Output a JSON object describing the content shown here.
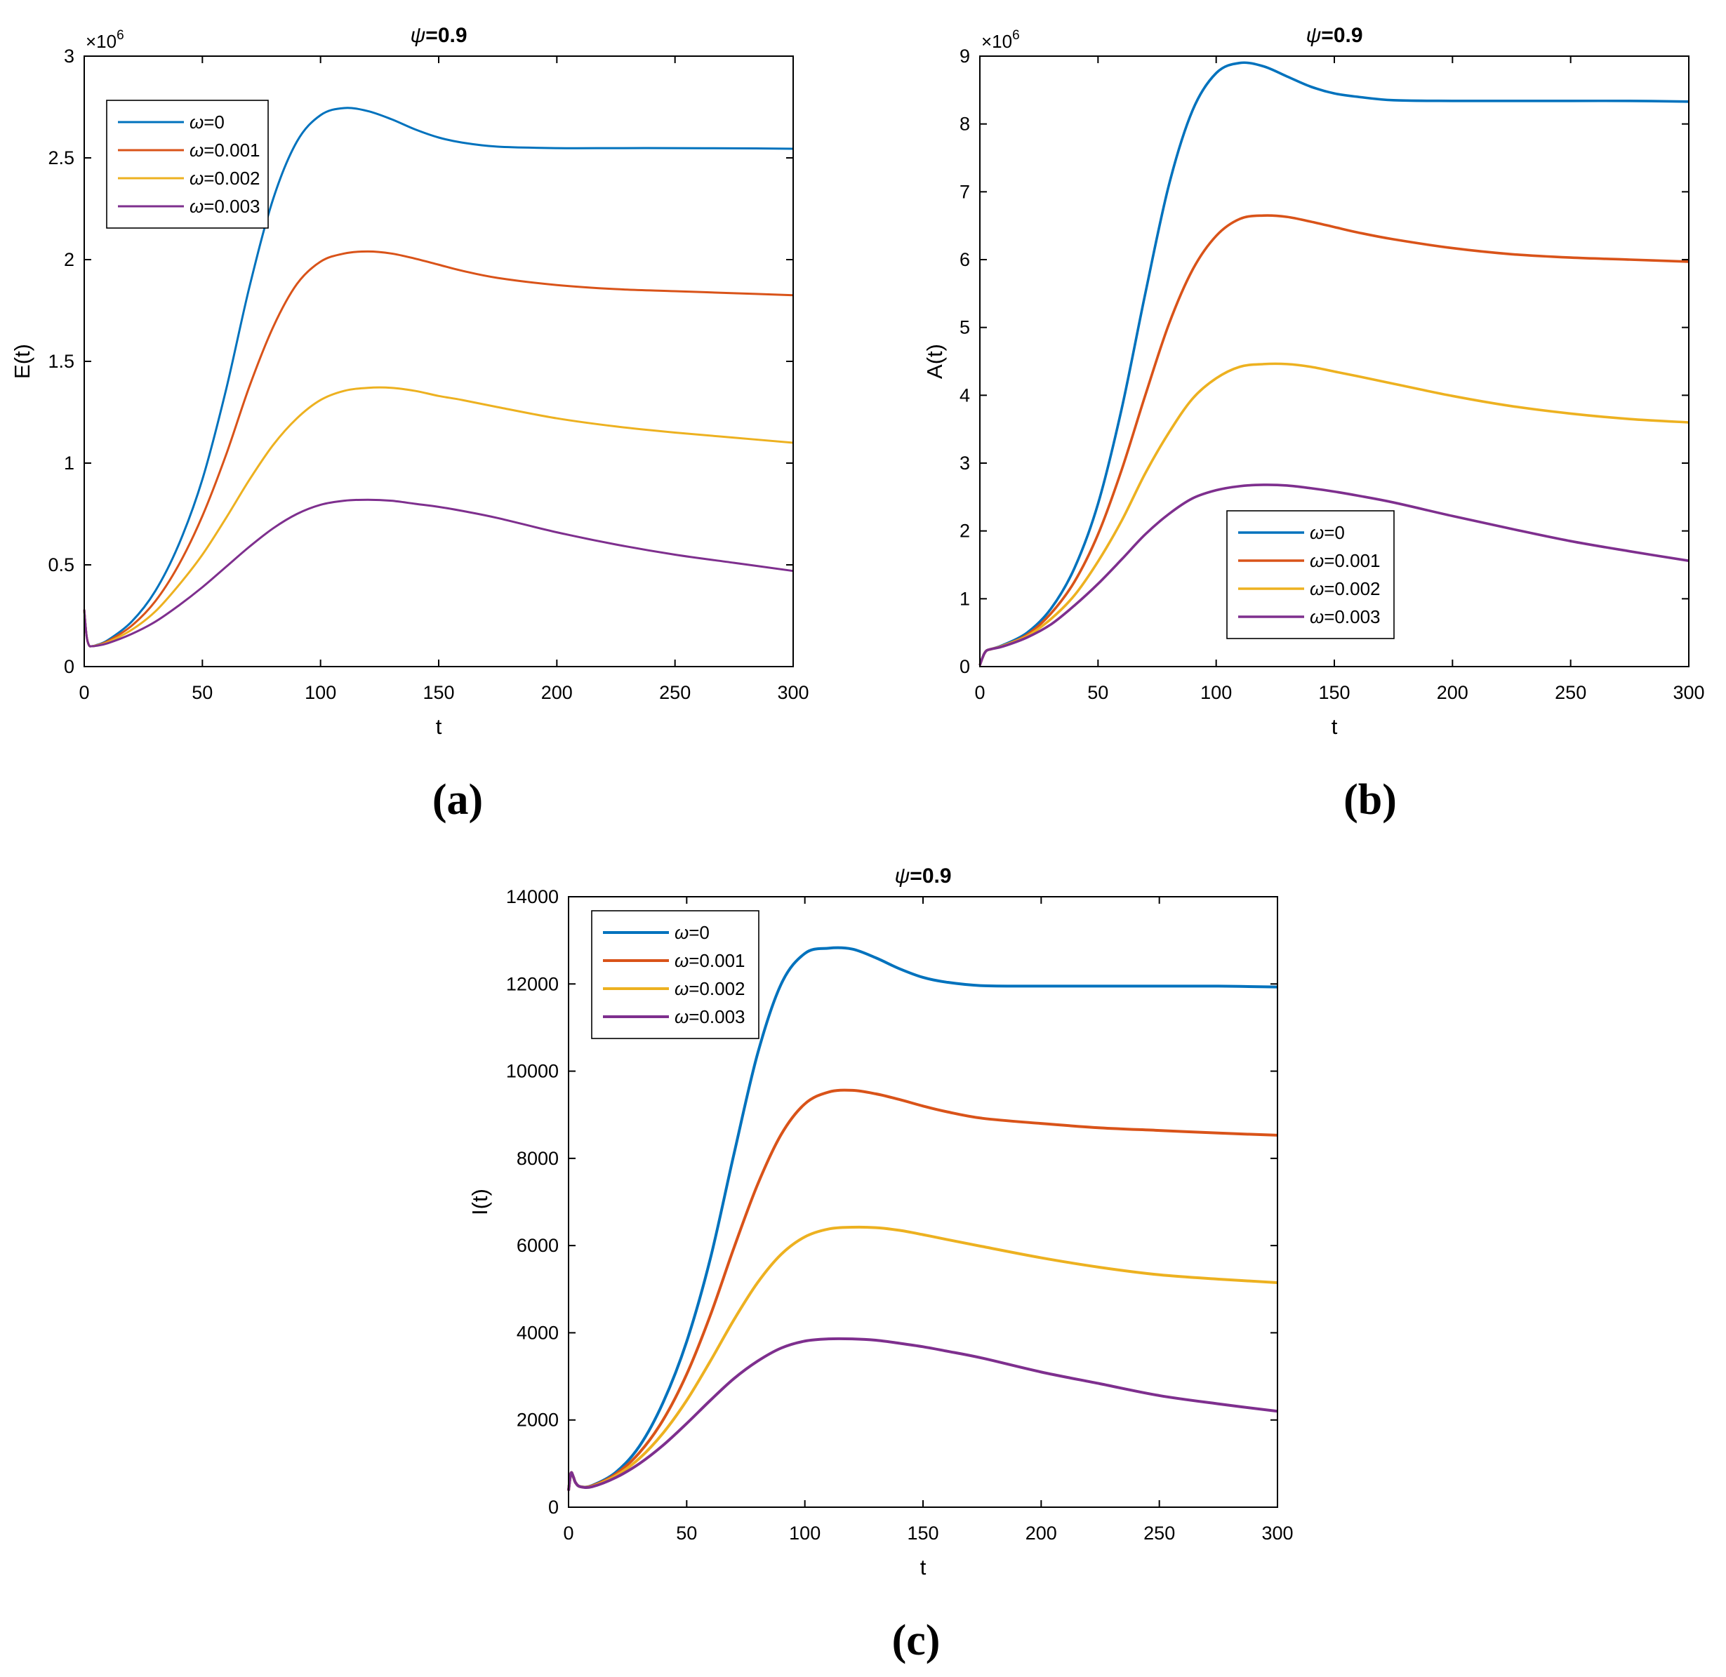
{
  "colors": {
    "series": [
      "#0072BD",
      "#D95319",
      "#EDB120",
      "#7E2F8E"
    ],
    "axis": "#000000",
    "background": "#ffffff"
  },
  "chart_data": [
    {
      "id": "a",
      "type": "line",
      "caption": "(a)",
      "title": {
        "symbol": "ψ",
        "value": "=0.9"
      },
      "xlabel": "t",
      "ylabel": "E(t)",
      "xlim": [
        0,
        300
      ],
      "ylim": [
        0,
        3
      ],
      "xticks": [
        0,
        50,
        100,
        150,
        200,
        250,
        300
      ],
      "yticks": [
        0,
        0.5,
        1,
        1.5,
        2,
        2.5,
        3
      ],
      "ytick_labels": [
        "0",
        "0.5",
        "1",
        "1.5",
        "2",
        "2.5",
        "3"
      ],
      "multiplier": {
        "base": "×10",
        "exp": "6"
      },
      "grid": false,
      "legend_position": "top-left",
      "x": [
        0,
        1,
        2,
        3,
        5,
        10,
        20,
        30,
        40,
        50,
        60,
        70,
        80,
        90,
        100,
        110,
        120,
        130,
        140,
        150,
        160,
        175,
        200,
        225,
        250,
        275,
        300
      ],
      "series": [
        {
          "name": "ω=0",
          "symbol": "ω",
          "value": "=0",
          "values": [
            0.28,
            0.15,
            0.105,
            0.1,
            0.105,
            0.13,
            0.22,
            0.37,
            0.6,
            0.92,
            1.36,
            1.87,
            2.3,
            2.58,
            2.71,
            2.745,
            2.73,
            2.69,
            2.64,
            2.6,
            2.575,
            2.555,
            2.548,
            2.548,
            2.548,
            2.547,
            2.545
          ]
        },
        {
          "name": "ω=0.001",
          "symbol": "ω",
          "value": "=0.001",
          "values": [
            0.28,
            0.15,
            0.105,
            0.1,
            0.104,
            0.125,
            0.2,
            0.32,
            0.5,
            0.74,
            1.04,
            1.38,
            1.67,
            1.88,
            1.99,
            2.03,
            2.04,
            2.03,
            2.005,
            1.975,
            1.945,
            1.91,
            1.875,
            1.855,
            1.845,
            1.835,
            1.825
          ]
        },
        {
          "name": "ω=0.002",
          "symbol": "ω",
          "value": "=0.002",
          "values": [
            0.28,
            0.15,
            0.105,
            0.1,
            0.103,
            0.12,
            0.18,
            0.27,
            0.4,
            0.55,
            0.73,
            0.92,
            1.09,
            1.22,
            1.31,
            1.355,
            1.37,
            1.37,
            1.355,
            1.33,
            1.31,
            1.275,
            1.22,
            1.18,
            1.15,
            1.125,
            1.1
          ]
        },
        {
          "name": "ω=0.003",
          "symbol": "ω",
          "value": "=0.003",
          "values": [
            0.28,
            0.15,
            0.105,
            0.1,
            0.102,
            0.115,
            0.16,
            0.22,
            0.3,
            0.39,
            0.49,
            0.59,
            0.68,
            0.75,
            0.795,
            0.815,
            0.82,
            0.815,
            0.8,
            0.785,
            0.765,
            0.73,
            0.66,
            0.6,
            0.55,
            0.51,
            0.47
          ]
        }
      ]
    },
    {
      "id": "b",
      "type": "line",
      "caption": "(b)",
      "title": {
        "symbol": "ψ",
        "value": "=0.9"
      },
      "xlabel": "t",
      "ylabel": "A(t)",
      "xlim": [
        0,
        300
      ],
      "ylim": [
        0,
        9
      ],
      "xticks": [
        0,
        50,
        100,
        150,
        200,
        250,
        300
      ],
      "yticks": [
        0,
        1,
        2,
        3,
        4,
        5,
        6,
        7,
        8,
        9
      ],
      "ytick_labels": [
        "0",
        "1",
        "2",
        "3",
        "4",
        "5",
        "6",
        "7",
        "8",
        "9"
      ],
      "multiplier": {
        "base": "×10",
        "exp": "6"
      },
      "grid": false,
      "legend_position": "bottom-right",
      "x": [
        0,
        1,
        2,
        3,
        5,
        10,
        20,
        30,
        40,
        50,
        60,
        70,
        80,
        90,
        100,
        110,
        120,
        130,
        140,
        150,
        160,
        175,
        200,
        225,
        250,
        275,
        300
      ],
      "series": [
        {
          "name": "ω=0",
          "symbol": "ω",
          "value": "=0",
          "values": [
            0.02,
            0.12,
            0.2,
            0.24,
            0.26,
            0.32,
            0.5,
            0.85,
            1.45,
            2.4,
            3.8,
            5.5,
            7.1,
            8.2,
            8.75,
            8.9,
            8.85,
            8.7,
            8.55,
            8.45,
            8.4,
            8.35,
            8.34,
            8.34,
            8.34,
            8.34,
            8.33
          ]
        },
        {
          "name": "ω=0.001",
          "symbol": "ω",
          "value": "=0.001",
          "values": [
            0.02,
            0.12,
            0.2,
            0.24,
            0.26,
            0.31,
            0.47,
            0.78,
            1.25,
            1.95,
            2.9,
            4.0,
            5.05,
            5.85,
            6.35,
            6.6,
            6.65,
            6.63,
            6.56,
            6.48,
            6.4,
            6.3,
            6.17,
            6.08,
            6.03,
            6.0,
            5.97
          ]
        },
        {
          "name": "ω=0.002",
          "symbol": "ω",
          "value": "=0.002",
          "values": [
            0.02,
            0.12,
            0.2,
            0.24,
            0.26,
            0.31,
            0.45,
            0.7,
            1.05,
            1.55,
            2.15,
            2.85,
            3.45,
            3.95,
            4.25,
            4.42,
            4.46,
            4.46,
            4.42,
            4.35,
            4.28,
            4.17,
            3.99,
            3.84,
            3.73,
            3.65,
            3.6
          ]
        },
        {
          "name": "ω=0.003",
          "symbol": "ω",
          "value": "=0.003",
          "values": [
            0.02,
            0.12,
            0.2,
            0.24,
            0.26,
            0.3,
            0.43,
            0.62,
            0.9,
            1.22,
            1.58,
            1.95,
            2.25,
            2.48,
            2.6,
            2.66,
            2.68,
            2.67,
            2.63,
            2.58,
            2.52,
            2.42,
            2.22,
            2.03,
            1.85,
            1.7,
            1.56
          ]
        }
      ]
    },
    {
      "id": "c",
      "type": "line",
      "caption": "(c)",
      "title": {
        "symbol": "ψ",
        "value": "=0.9"
      },
      "xlabel": "t",
      "ylabel": "I(t)",
      "xlim": [
        0,
        300
      ],
      "ylim": [
        0,
        14000
      ],
      "xticks": [
        0,
        50,
        100,
        150,
        200,
        250,
        300
      ],
      "yticks": [
        0,
        2000,
        4000,
        6000,
        8000,
        10000,
        12000,
        14000
      ],
      "ytick_labels": [
        "0",
        "2000",
        "4000",
        "6000",
        "8000",
        "10000",
        "12000",
        "14000"
      ],
      "grid": false,
      "legend_position": "top-left",
      "x": [
        0,
        1,
        2,
        3,
        5,
        10,
        20,
        30,
        40,
        50,
        60,
        70,
        80,
        90,
        100,
        110,
        120,
        130,
        140,
        150,
        160,
        175,
        200,
        225,
        250,
        275,
        300
      ],
      "series": [
        {
          "name": "ω=0",
          "symbol": "ω",
          "value": "=0",
          "values": [
            380,
            780,
            700,
            560,
            470,
            500,
            800,
            1400,
            2400,
            3800,
            5700,
            8100,
            10400,
            12000,
            12700,
            12820,
            12800,
            12600,
            12350,
            12150,
            12040,
            11960,
            11950,
            11950,
            11950,
            11950,
            11930
          ]
        },
        {
          "name": "ω=0.001",
          "symbol": "ω",
          "value": "=0.001",
          "values": [
            380,
            780,
            700,
            560,
            470,
            490,
            760,
            1250,
            2000,
            3050,
            4400,
            5950,
            7400,
            8550,
            9250,
            9520,
            9560,
            9480,
            9350,
            9200,
            9070,
            8920,
            8800,
            8700,
            8640,
            8580,
            8530
          ]
        },
        {
          "name": "ω=0.002",
          "symbol": "ω",
          "value": "=0.002",
          "values": [
            380,
            780,
            700,
            560,
            470,
            480,
            720,
            1120,
            1700,
            2450,
            3350,
            4300,
            5150,
            5800,
            6200,
            6380,
            6420,
            6410,
            6350,
            6250,
            6140,
            5980,
            5720,
            5500,
            5330,
            5230,
            5150
          ]
        },
        {
          "name": "ω=0.003",
          "symbol": "ω",
          "value": "=0.003",
          "values": [
            380,
            780,
            700,
            560,
            470,
            470,
            680,
            1000,
            1420,
            1920,
            2450,
            2950,
            3350,
            3650,
            3810,
            3860,
            3860,
            3830,
            3760,
            3680,
            3580,
            3420,
            3100,
            2830,
            2560,
            2370,
            2200
          ]
        }
      ]
    }
  ]
}
